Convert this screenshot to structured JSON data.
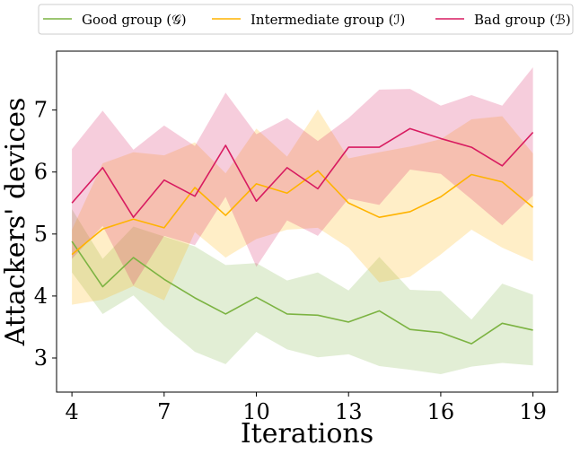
{
  "chart_data": {
    "type": "line",
    "title": "",
    "xlabel": "Iterations",
    "ylabel": "Attackers' devices",
    "xlim": [
      3.5,
      19.8
    ],
    "ylim": [
      2.45,
      7.95
    ],
    "xticks": [
      4,
      7,
      10,
      13,
      16,
      19
    ],
    "yticks": [
      3,
      4,
      5,
      6,
      7
    ],
    "legend_position": "top, outside plot, single row",
    "grid": false,
    "x": [
      4,
      5,
      6,
      7,
      8,
      9,
      10,
      11,
      12,
      13,
      14,
      15,
      16,
      17,
      18,
      19
    ],
    "series": [
      {
        "name": "Good group (𝒢)",
        "color": "#7cb342",
        "values": [
          4.88,
          4.15,
          4.62,
          4.27,
          3.97,
          3.71,
          3.98,
          3.71,
          3.69,
          3.58,
          3.76,
          3.46,
          3.41,
          3.23,
          3.56,
          3.45
        ],
        "lower": [
          4.38,
          3.71,
          4.01,
          3.52,
          3.1,
          2.9,
          3.42,
          3.14,
          3.01,
          3.06,
          2.87,
          2.81,
          2.74,
          2.86,
          2.92,
          2.88
        ],
        "upper": [
          5.4,
          4.6,
          5.12,
          4.96,
          4.8,
          4.5,
          4.53,
          4.25,
          4.38,
          4.09,
          4.63,
          4.1,
          4.08,
          3.62,
          4.2,
          4.02
        ]
      },
      {
        "name": "Intermediate group (ℐ)",
        "color": "#ffb300",
        "values": [
          4.67,
          5.08,
          5.24,
          5.1,
          5.75,
          5.3,
          5.81,
          5.66,
          6.02,
          5.5,
          5.27,
          5.36,
          5.6,
          5.96,
          5.84,
          5.43
        ],
        "lower": [
          3.86,
          3.94,
          4.16,
          3.93,
          5.03,
          4.62,
          4.92,
          5.07,
          5.1,
          4.78,
          4.22,
          4.31,
          4.67,
          5.07,
          4.78,
          4.56
        ],
        "upper": [
          5.07,
          6.14,
          6.32,
          6.27,
          6.48,
          5.98,
          6.7,
          6.25,
          7.01,
          6.22,
          6.32,
          6.41,
          6.53,
          6.85,
          6.9,
          6.3
        ]
      },
      {
        "name": "Bad group (ℬ)",
        "color": "#d81b60",
        "values": [
          5.5,
          6.07,
          5.27,
          5.87,
          5.61,
          6.43,
          5.53,
          6.07,
          5.73,
          6.4,
          6.4,
          6.7,
          6.54,
          6.4,
          6.1,
          6.64
        ],
        "lower": [
          4.6,
          5.13,
          4.17,
          4.97,
          4.82,
          5.6,
          4.47,
          5.22,
          4.97,
          5.57,
          5.47,
          6.04,
          5.97,
          5.56,
          5.14,
          5.62
        ],
        "upper": [
          6.37,
          6.99,
          6.36,
          6.75,
          6.42,
          7.28,
          6.61,
          6.87,
          6.5,
          6.87,
          7.33,
          7.34,
          7.07,
          7.24,
          7.07,
          7.69
        ]
      }
    ]
  }
}
